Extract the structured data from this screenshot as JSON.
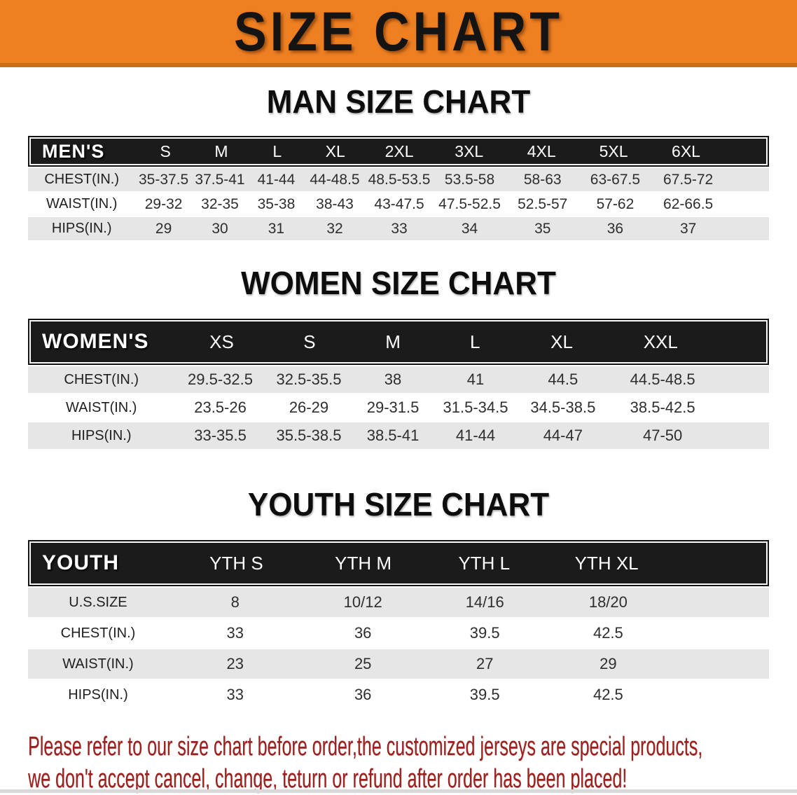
{
  "banner": {
    "title": "SIZE CHART",
    "bg_color": "#ee8022",
    "edge_color": "#c96d16"
  },
  "colors": {
    "header_bar": "#1b1b1b",
    "row_gray": "#e6e6e6",
    "disclaimer_red": "#9c2220"
  },
  "sections": {
    "men": {
      "heading": "MAN SIZE CHART",
      "table": {
        "header": [
          "MEN'S",
          "S",
          "M",
          "L",
          "XL",
          "2XL",
          "3XL",
          "4XL",
          "5XL",
          "6XL"
        ],
        "rows": [
          {
            "label": "CHEST(IN.)",
            "values": [
              "35-37.5",
              "37.5-41",
              "41-44",
              "44-48.5",
              "48.5-53.5",
              "53.5-58",
              "58-63",
              "63-67.5",
              "67.5-72"
            ]
          },
          {
            "label": "WAIST(IN.)",
            "values": [
              "29-32",
              "32-35",
              "35-38",
              "38-43",
              "43-47.5",
              "47.5-52.5",
              "52.5-57",
              "57-62",
              "62-66.5"
            ]
          },
          {
            "label": "HIPS(IN.)",
            "values": [
              "29",
              "30",
              "31",
              "32",
              "33",
              "34",
              "35",
              "36",
              "37"
            ]
          }
        ]
      }
    },
    "women": {
      "heading": "WOMEN SIZE CHART",
      "table": {
        "header": [
          "WOMEN'S",
          "XS",
          "S",
          "M",
          "L",
          "XL",
          "XXL"
        ],
        "rows": [
          {
            "label": "CHEST(IN.)",
            "values": [
              "29.5-32.5",
              "32.5-35.5",
              "38",
              "41",
              "44.5",
              "44.5-48.5"
            ]
          },
          {
            "label": "WAIST(IN.)",
            "values": [
              "23.5-26",
              "26-29",
              "29-31.5",
              "31.5-34.5",
              "34.5-38.5",
              "38.5-42.5"
            ]
          },
          {
            "label": "HIPS(IN.)",
            "values": [
              "33-35.5",
              "35.5-38.5",
              "38.5-41",
              "41-44",
              "44-47",
              "47-50"
            ]
          }
        ]
      }
    },
    "youth": {
      "heading": "YOUTH SIZE CHART",
      "table": {
        "header": [
          "YOUTH",
          "YTH S",
          "YTH M",
          "YTH L",
          "YTH XL"
        ],
        "rows": [
          {
            "label": "U.S.SIZE",
            "values": [
              "8",
              "10/12",
              "14/16",
              "18/20"
            ]
          },
          {
            "label": "CHEST(IN.)",
            "values": [
              "33",
              "36",
              "39.5",
              "42.5"
            ]
          },
          {
            "label": "WAIST(IN.)",
            "values": [
              "23",
              "25",
              "27",
              "29"
            ]
          },
          {
            "label": "HIPS(IN.)",
            "values": [
              "33",
              "36",
              "39.5",
              "42.5"
            ]
          }
        ]
      }
    }
  },
  "footer": {
    "line1": "Please refer to our size chart before order,the customized jerseys are special products,",
    "line2": "we don't accept cancel, change, teturn or refund after order has been placed!"
  }
}
